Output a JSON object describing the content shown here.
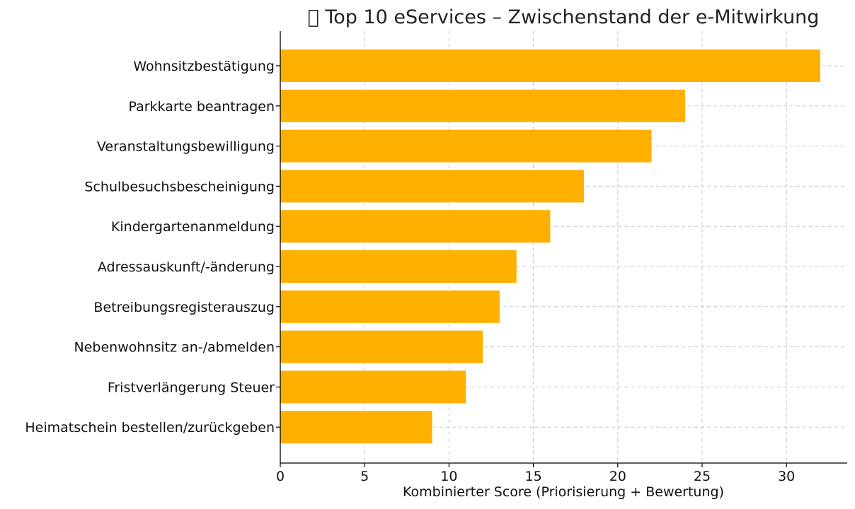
{
  "chart_data": {
    "type": "bar",
    "orientation": "horizontal",
    "title": "\u0000 Top 10 eServices – Zwischenstand der e-Mitwirkung",
    "xlabel": "Kombinierter Score (Priorisierung + Bewertung)",
    "ylabel": "",
    "categories": [
      "Wohnsitzbestätigung",
      "Parkkarte beantragen",
      "Veranstaltungsbewilligung",
      "Schulbesuchsbescheinigung",
      "Kindergartenanmeldung",
      "Adressauskunft/-änderung",
      "Betreibungsregisterauszug",
      "Nebenwohnsitz an-/abmelden",
      "Fristverlängerung Steuer",
      "Heimatschein bestellen/zurückgeben"
    ],
    "values": [
      32,
      24,
      22,
      18,
      16,
      14,
      13,
      12,
      11,
      9
    ],
    "xlim": [
      0,
      33.6
    ],
    "xticks": [
      0,
      5,
      10,
      15,
      20,
      25,
      30
    ],
    "grid": true,
    "bar_color": "#FFB000"
  }
}
